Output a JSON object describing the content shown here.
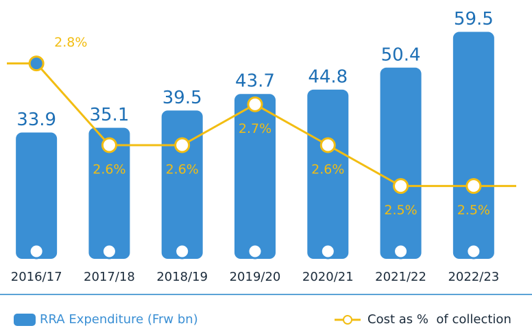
{
  "chart_data": {
    "type": "bar",
    "categories": [
      "2016/17",
      "2017/18",
      "2018/19",
      "2019/20",
      "2020/21",
      "2021/22",
      "2022/23"
    ],
    "series": [
      {
        "name": "RRA Expenditure (Frw bn)",
        "color": "#3a8fd4",
        "values": [
          33.9,
          35.1,
          39.5,
          43.7,
          44.8,
          50.4,
          59.5
        ]
      },
      {
        "name": "Cost as %  of collection",
        "color": "#f2bd12",
        "axis": "y2",
        "type": "line",
        "values": [
          2.8,
          2.6,
          2.6,
          2.7,
          2.6,
          2.5,
          2.5
        ],
        "value_labels": [
          "2.8%",
          "2.6%",
          "2.6%",
          "2.7%",
          "2.6%",
          "2.5%",
          "2.5%"
        ]
      }
    ],
    "ylim": [
      0,
      65
    ],
    "y2lim": [
      2.3,
      2.9
    ]
  }
}
